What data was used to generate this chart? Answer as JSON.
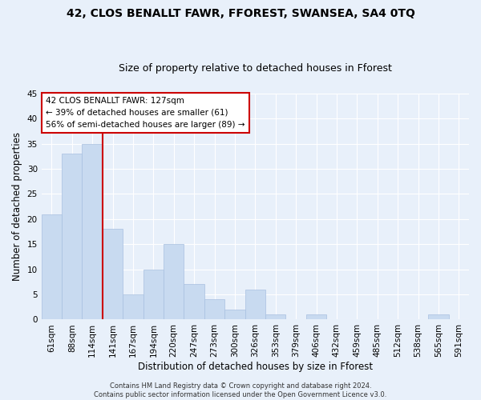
{
  "title1": "42, CLOS BENALLT FAWR, FFOREST, SWANSEA, SA4 0TQ",
  "title2": "Size of property relative to detached houses in Fforest",
  "xlabel": "Distribution of detached houses by size in Fforest",
  "ylabel": "Number of detached properties",
  "footnote": "Contains HM Land Registry data © Crown copyright and database right 2024.\nContains public sector information licensed under the Open Government Licence v3.0.",
  "categories": [
    "61sqm",
    "88sqm",
    "114sqm",
    "141sqm",
    "167sqm",
    "194sqm",
    "220sqm",
    "247sqm",
    "273sqm",
    "300sqm",
    "326sqm",
    "353sqm",
    "379sqm",
    "406sqm",
    "432sqm",
    "459sqm",
    "485sqm",
    "512sqm",
    "538sqm",
    "565sqm",
    "591sqm"
  ],
  "values": [
    21,
    33,
    35,
    18,
    5,
    10,
    15,
    7,
    4,
    2,
    6,
    1,
    0,
    1,
    0,
    0,
    0,
    0,
    0,
    1,
    0
  ],
  "bar_color": "#c8daf0",
  "bar_edge_color": "#a8c0e0",
  "red_line_index": 2,
  "annotation_text": "42 CLOS BENALLT FAWR: 127sqm\n← 39% of detached houses are smaller (61)\n56% of semi-detached houses are larger (89) →",
  "annotation_box_color": "#ffffff",
  "annotation_box_edge_color": "#cc0000",
  "red_line_color": "#cc0000",
  "ylim": [
    0,
    45
  ],
  "yticks": [
    0,
    5,
    10,
    15,
    20,
    25,
    30,
    35,
    40,
    45
  ],
  "background_color": "#e8f0fa",
  "grid_color": "#ffffff",
  "title1_fontsize": 10,
  "title2_fontsize": 9,
  "xlabel_fontsize": 8.5,
  "ylabel_fontsize": 8.5,
  "tick_fontsize": 7.5,
  "annot_fontsize": 7.5,
  "footnote_fontsize": 6
}
